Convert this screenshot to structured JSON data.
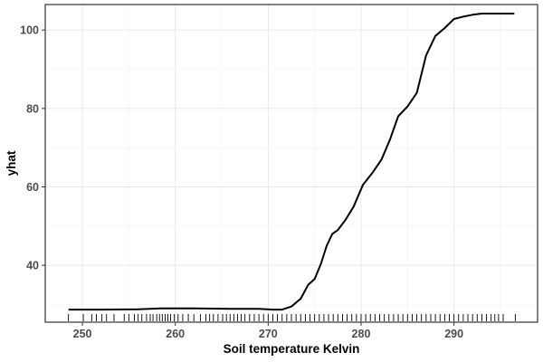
{
  "chart_data": {
    "type": "line",
    "title": "",
    "xlabel": "Soil temperature Kelvin",
    "ylabel": "yhat",
    "xlim": [
      246,
      299
    ],
    "ylim": [
      25.5,
      106.5
    ],
    "x_ticks": [
      250,
      260,
      270,
      280,
      290
    ],
    "y_ticks": [
      40,
      60,
      80,
      100
    ],
    "grid": true,
    "legend": "none",
    "line_color": "#000000",
    "series": [
      {
        "x": [
          248.5,
          252,
          256,
          258.5,
          262,
          266,
          269,
          270.5,
          271.5,
          272.5,
          273.5,
          274.3,
          275,
          275.7,
          276.3,
          276.9,
          277.5,
          278.3,
          279.2,
          280.2,
          281.2,
          282.2,
          283.1,
          284,
          285,
          286,
          287,
          288,
          289,
          290,
          291,
          292,
          293,
          294,
          295,
          296.5
        ],
        "y": [
          28.7,
          28.7,
          28.8,
          29.0,
          29.0,
          28.9,
          28.9,
          28.7,
          28.7,
          29.5,
          31.5,
          35.0,
          36.5,
          40.5,
          45.0,
          48.0,
          49.0,
          51.5,
          55.0,
          60.5,
          63.5,
          67.0,
          72.0,
          78.0,
          80.5,
          84.0,
          93.5,
          98.5,
          100.5,
          102.8,
          103.4,
          103.9,
          104.2,
          104.2,
          104.2,
          104.2
        ]
      }
    ],
    "rug_x": [
      248.5,
      250.1,
      251.0,
      251.5,
      252.1,
      252.6,
      253.4,
      254.5,
      255.0,
      255.6,
      256.0,
      256.4,
      256.9,
      257.3,
      257.6,
      258.0,
      258.3,
      258.6,
      258.9,
      259.2,
      259.5,
      259.9,
      260.3,
      260.8,
      261.4,
      262.0,
      262.7,
      263.3,
      263.7,
      264.1,
      264.6,
      265.1,
      265.5,
      265.9,
      266.3,
      266.7,
      267.1,
      267.5,
      268.0,
      268.5,
      269.0,
      269.5,
      270.0,
      270.5,
      271.0,
      271.5,
      272.0,
      272.5,
      273.0,
      273.5,
      274.0,
      274.5,
      275.0,
      275.5,
      276.0,
      276.5,
      277.0,
      277.5,
      278.0,
      278.5,
      279.0,
      279.5,
      280.0,
      280.5,
      281.0,
      281.5,
      282.0,
      282.5,
      283.0,
      283.5,
      284.0,
      284.5,
      285.0,
      285.5,
      286.0,
      286.5,
      287.0,
      287.5,
      288.0,
      288.5,
      289.0,
      289.5,
      290.0,
      290.5,
      291.0,
      291.5,
      292.0,
      292.5,
      293.0,
      293.5,
      294.0,
      294.4,
      294.8,
      295.3,
      296.6
    ]
  }
}
